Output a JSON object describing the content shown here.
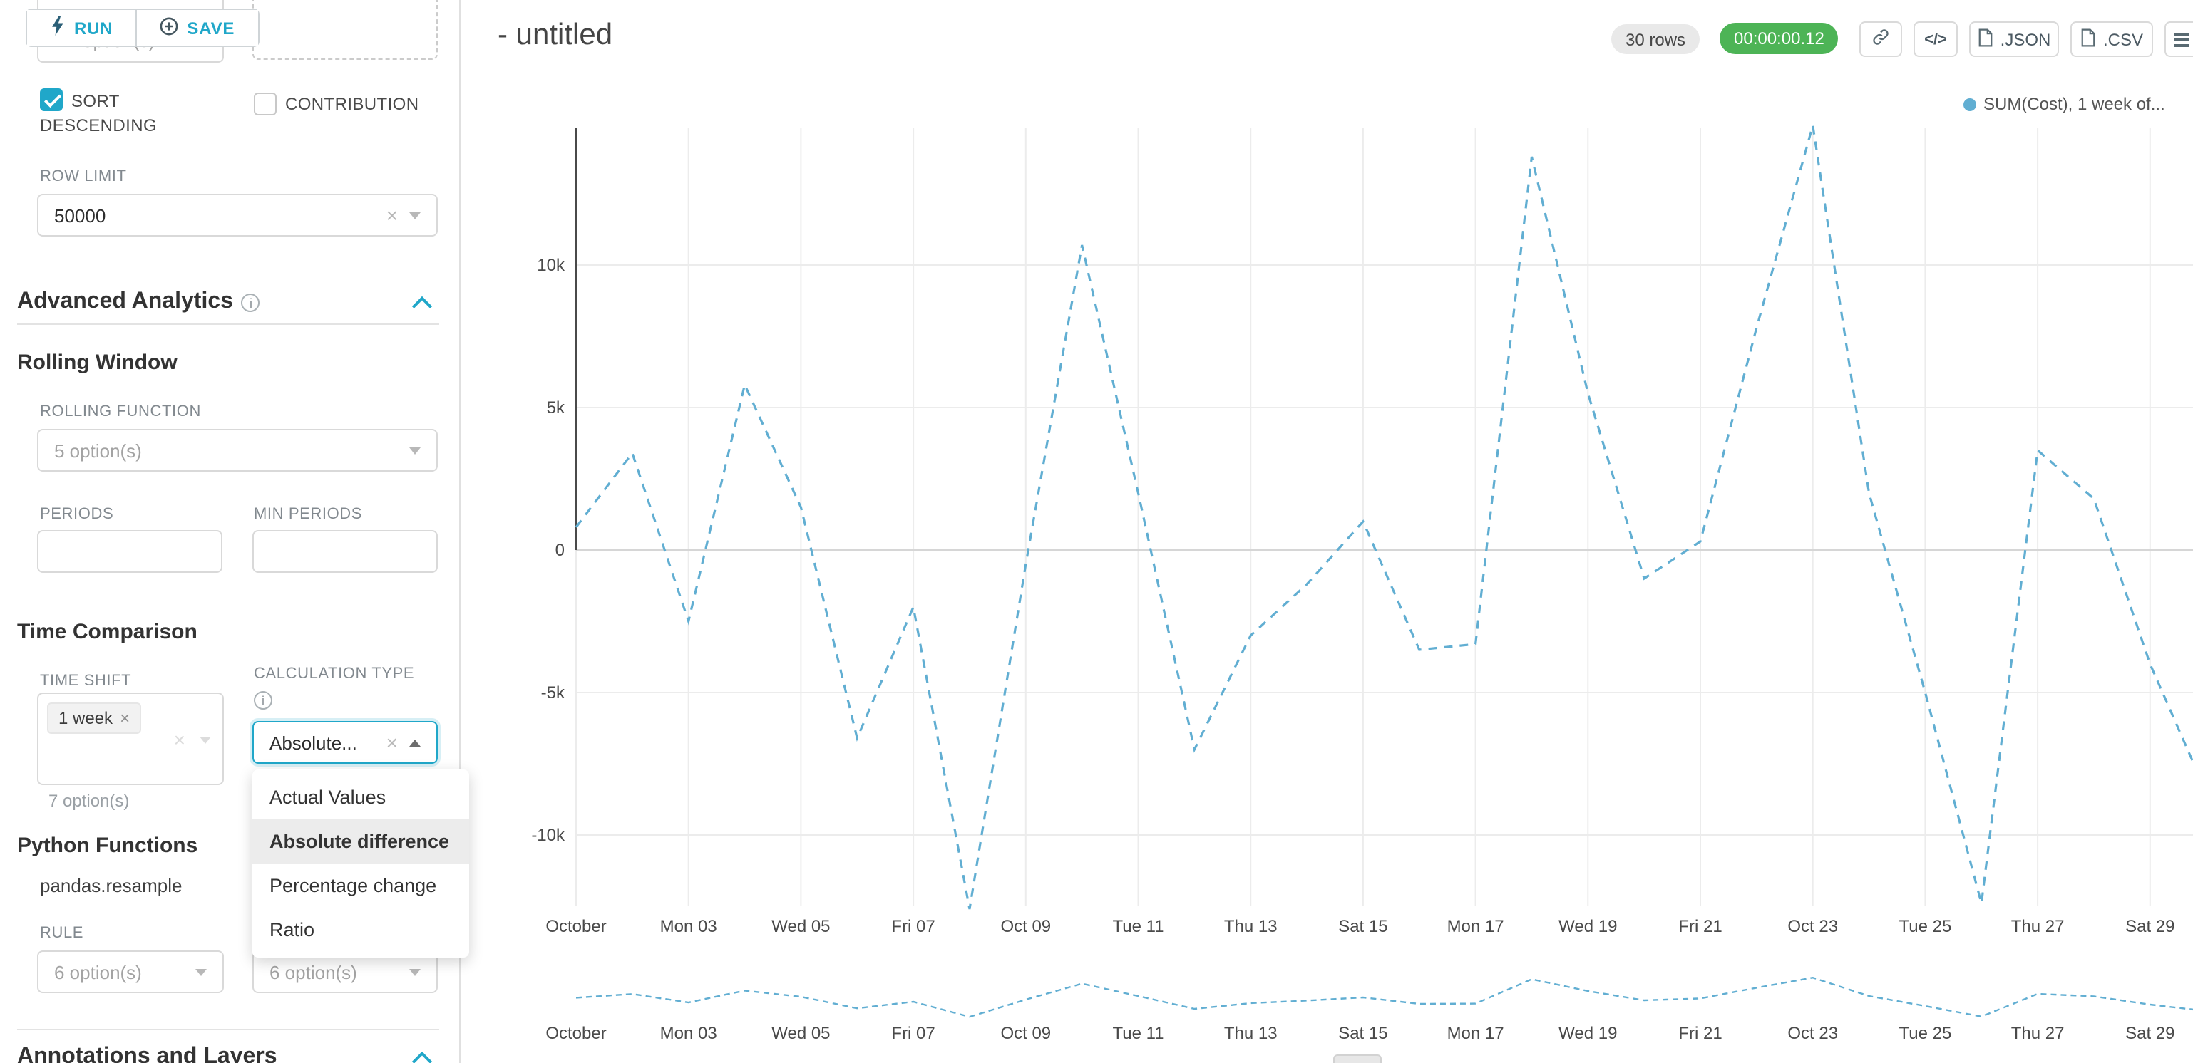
{
  "colors": {
    "accent": "#20a7c9",
    "timer_bg": "#4db456"
  },
  "toolbar": {
    "run_label": "RUN",
    "save_label": "SAVE"
  },
  "sidebar": {
    "cropped_select_value": "option(s)",
    "sort_descending_label": "SORT DESCENDING",
    "contribution_label": "CONTRIBUTION",
    "row_limit_label": "ROW LIMIT",
    "row_limit_value": "50000",
    "advanced_analytics_title": "Advanced Analytics",
    "rolling_window_title": "Rolling Window",
    "rolling_function_label": "ROLLING FUNCTION",
    "rolling_function_value": "5 option(s)",
    "periods_label": "PERIODS",
    "min_periods_label": "MIN PERIODS",
    "time_comparison_title": "Time Comparison",
    "time_shift_label": "TIME SHIFT",
    "time_shift_tag": "1 week",
    "time_shift_hint": "7 option(s)",
    "calculation_type_label": "CALCULATION TYPE",
    "calculation_type_value": "Absolute...",
    "calc_menu_items": [
      "Actual Values",
      "Absolute difference",
      "Percentage change",
      "Ratio"
    ],
    "calc_selected": "Absolute difference",
    "python_functions_title": "Python Functions",
    "pandas_resample_label": "pandas.resample",
    "rule_label": "RULE",
    "rule_value_1": "6 option(s)",
    "rule_value_2": "6 option(s)",
    "annotations_title": "Annotations and Layers"
  },
  "header": {
    "title": "- untitled",
    "rows_badge": "30 rows",
    "timer": "00:00:00.12",
    "code_icon_label": "</>",
    "json_label": ".JSON",
    "csv_label": ".CSV"
  },
  "chart_data": {
    "type": "line",
    "line_style": "dashed",
    "line_color": "#61aed2",
    "legend": [
      {
        "label": "SUM(Cost), 1 week of...",
        "color": "#61aed2"
      }
    ],
    "n_points": 30,
    "x_tick_labels": [
      "October",
      "Mon 03",
      "Wed 05",
      "Fri 07",
      "Oct 09",
      "Tue 11",
      "Thu 13",
      "Sat 15",
      "Mon 17",
      "Wed 19",
      "Fri 21",
      "Oct 23",
      "Tue 25",
      "Thu 27",
      "Sat 29"
    ],
    "y_ticks": [
      {
        "label": "10k",
        "value": 10000
      },
      {
        "label": "5k",
        "value": 5000
      },
      {
        "label": "0",
        "value": 0
      },
      {
        "label": "-5k",
        "value": -5000
      },
      {
        "label": "-10k",
        "value": -10000
      }
    ],
    "ylim": [
      -13500,
      15000
    ],
    "grid": true,
    "legend_position": "top-right",
    "series": [
      {
        "name": "SUM(Cost), 1 week of...",
        "values": [
          800,
          3400,
          -2500,
          5800,
          1500,
          -6600,
          -2000,
          -12600,
          -500,
          10700,
          2000,
          -7000,
          -3000,
          -1200,
          1000,
          -3500,
          -3300,
          13800,
          5500,
          -1000,
          300,
          7800,
          14900,
          2000,
          -5000,
          -12400,
          3500,
          1800,
          -4000,
          -8500
        ]
      }
    ],
    "has_mini_chart": true
  }
}
